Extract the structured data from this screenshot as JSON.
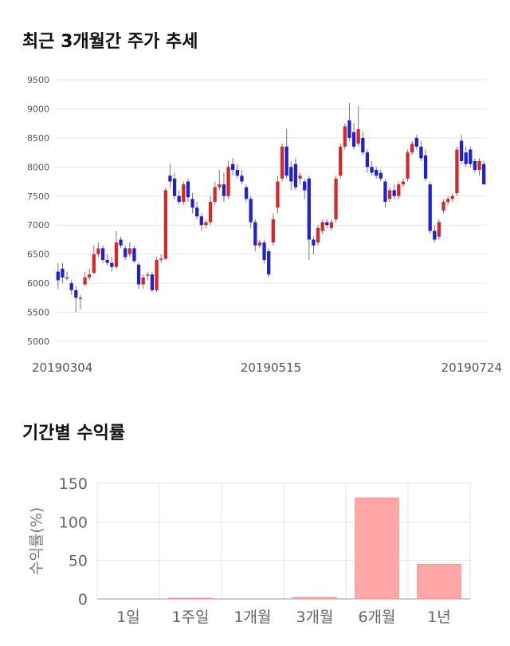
{
  "sections": {
    "price_title": "최근 3개월간 주가 추세",
    "return_title": "기간별 수익률"
  },
  "colors": {
    "up": "#d62728",
    "down": "#1f1fd6",
    "bar": "#ffa6a6",
    "grid": "#e6e6e6"
  },
  "chart_data": [
    {
      "type": "candlestick",
      "title": "",
      "yticks": [
        5000,
        5500,
        6000,
        6500,
        7000,
        7500,
        8000,
        8500,
        9000,
        9500
      ],
      "ylim": [
        5000,
        9500
      ],
      "xticks": [
        "20190304",
        "20190515",
        "20190724"
      ],
      "grid": true,
      "candles": [
        [
          6200,
          6050,
          6350,
          5900
        ],
        [
          6250,
          6100,
          6350,
          6000
        ],
        [
          6100,
          6100,
          6200,
          6050
        ],
        [
          6000,
          5880,
          6050,
          5800
        ],
        [
          5880,
          5750,
          5950,
          5500
        ],
        [
          5750,
          5750,
          5800,
          5550
        ],
        [
          5980,
          6100,
          6200,
          5950
        ],
        [
          6100,
          6150,
          6250,
          6050
        ],
        [
          6180,
          6500,
          6650,
          6150
        ],
        [
          6500,
          6600,
          6700,
          6450
        ],
        [
          6600,
          6400,
          6650,
          6350
        ],
        [
          6400,
          6350,
          6500,
          6300
        ],
        [
          6350,
          6280,
          6450,
          6200
        ],
        [
          6280,
          6700,
          6900,
          6250
        ],
        [
          6750,
          6650,
          6800,
          6600
        ],
        [
          6600,
          6450,
          6650,
          6400
        ],
        [
          6500,
          6600,
          6700,
          6450
        ],
        [
          6600,
          6380,
          6650,
          6350
        ],
        [
          6320,
          5980,
          6350,
          5900
        ],
        [
          5980,
          6100,
          6150,
          5900
        ],
        [
          6150,
          6150,
          6200,
          6050
        ],
        [
          6150,
          5880,
          6200,
          5850
        ],
        [
          5880,
          6400,
          6450,
          5850
        ],
        [
          6400,
          6420,
          6500,
          6350
        ],
        [
          6420,
          7600,
          7650,
          6400
        ],
        [
          7850,
          7750,
          8050,
          7650
        ],
        [
          7800,
          7500,
          7900,
          7450
        ],
        [
          7500,
          7400,
          7600,
          7350
        ],
        [
          7400,
          7700,
          7750,
          7350
        ],
        [
          7750,
          7480,
          7800,
          7400
        ],
        [
          7450,
          7300,
          7550,
          7200
        ],
        [
          7300,
          7150,
          7400,
          7100
        ],
        [
          7150,
          7000,
          7200,
          6900
        ],
        [
          7000,
          7050,
          7100,
          6950
        ],
        [
          7050,
          7400,
          7500,
          7000
        ],
        [
          7400,
          7650,
          7750,
          7350
        ],
        [
          7650,
          7700,
          7950,
          7600
        ],
        [
          7700,
          7500,
          7900,
          7400
        ],
        [
          7500,
          8000,
          8100,
          7450
        ],
        [
          8050,
          7950,
          8150,
          7850
        ],
        [
          7950,
          7850,
          8050,
          7800
        ],
        [
          7850,
          7750,
          7950,
          7700
        ],
        [
          7650,
          7450,
          7700,
          7400
        ],
        [
          7450,
          7050,
          7500,
          6950
        ],
        [
          7050,
          6650,
          7100,
          6550
        ],
        [
          6650,
          6700,
          6750,
          6600
        ],
        [
          6700,
          6400,
          6750,
          6350
        ],
        [
          6550,
          6150,
          6600,
          6100
        ],
        [
          6700,
          7100,
          7200,
          6650
        ],
        [
          7300,
          7750,
          7850,
          7200
        ],
        [
          7800,
          8350,
          8400,
          7750
        ],
        [
          8350,
          7850,
          8650,
          7800
        ],
        [
          8000,
          7750,
          8100,
          7600
        ],
        [
          8050,
          7650,
          8150,
          7600
        ],
        [
          7800,
          7850,
          7900,
          7700
        ],
        [
          7750,
          7600,
          7800,
          7450
        ],
        [
          7800,
          6750,
          7850,
          6400
        ],
        [
          6750,
          6650,
          6800,
          6500
        ],
        [
          6700,
          6950,
          7000,
          6650
        ],
        [
          6900,
          7050,
          7100,
          6850
        ],
        [
          7050,
          7000,
          7100,
          6950
        ],
        [
          6950,
          7050,
          7100,
          6900
        ],
        [
          7100,
          7800,
          7850,
          7050
        ],
        [
          7850,
          8350,
          8400,
          7800
        ],
        [
          8350,
          8700,
          8750,
          8300
        ],
        [
          8800,
          8500,
          9100,
          8450
        ],
        [
          8600,
          8350,
          8750,
          8300
        ],
        [
          8400,
          8650,
          9050,
          8350
        ],
        [
          8500,
          8250,
          8600,
          8200
        ],
        [
          8250,
          8000,
          8300,
          7900
        ],
        [
          8000,
          7900,
          8100,
          7850
        ],
        [
          7950,
          7850,
          8000,
          7800
        ],
        [
          7900,
          7800,
          7950,
          7750
        ],
        [
          7750,
          7400,
          7800,
          7300
        ],
        [
          7450,
          7600,
          7650,
          7400
        ],
        [
          7600,
          7500,
          7700,
          7450
        ],
        [
          7500,
          7700,
          7750,
          7450
        ],
        [
          7700,
          7750,
          7800,
          7650
        ],
        [
          7800,
          8250,
          8300,
          7750
        ],
        [
          8250,
          8400,
          8450,
          8200
        ],
        [
          8500,
          8350,
          8550,
          8300
        ],
        [
          8350,
          8150,
          8450,
          8100
        ],
        [
          8200,
          7800,
          8300,
          7750
        ],
        [
          7700,
          6900,
          7750,
          6850
        ],
        [
          6900,
          6750,
          7000,
          6700
        ],
        [
          6800,
          7050,
          7100,
          6750
        ],
        [
          7250,
          7400,
          7450,
          7200
        ],
        [
          7400,
          7450,
          7500,
          7350
        ],
        [
          7450,
          7500,
          7550,
          7400
        ],
        [
          7550,
          8300,
          8350,
          7500
        ],
        [
          8450,
          8100,
          8550,
          8050
        ],
        [
          8250,
          8050,
          8350,
          8000
        ],
        [
          8300,
          8050,
          8350,
          8000
        ],
        [
          8100,
          7950,
          8150,
          7900
        ],
        [
          7950,
          8100,
          8150,
          7850
        ],
        [
          8050,
          7700,
          8100,
          7700
        ]
      ]
    },
    {
      "type": "bar",
      "title": "",
      "ylabel": "수익률(%)",
      "categories": [
        "1일",
        "1주일",
        "1개월",
        "3개월",
        "6개월",
        "1년"
      ],
      "values": [
        0,
        1,
        0,
        2,
        131,
        45
      ],
      "ylim": [
        0,
        150
      ],
      "yticks": [
        0,
        50,
        100,
        150
      ],
      "grid": true
    }
  ]
}
